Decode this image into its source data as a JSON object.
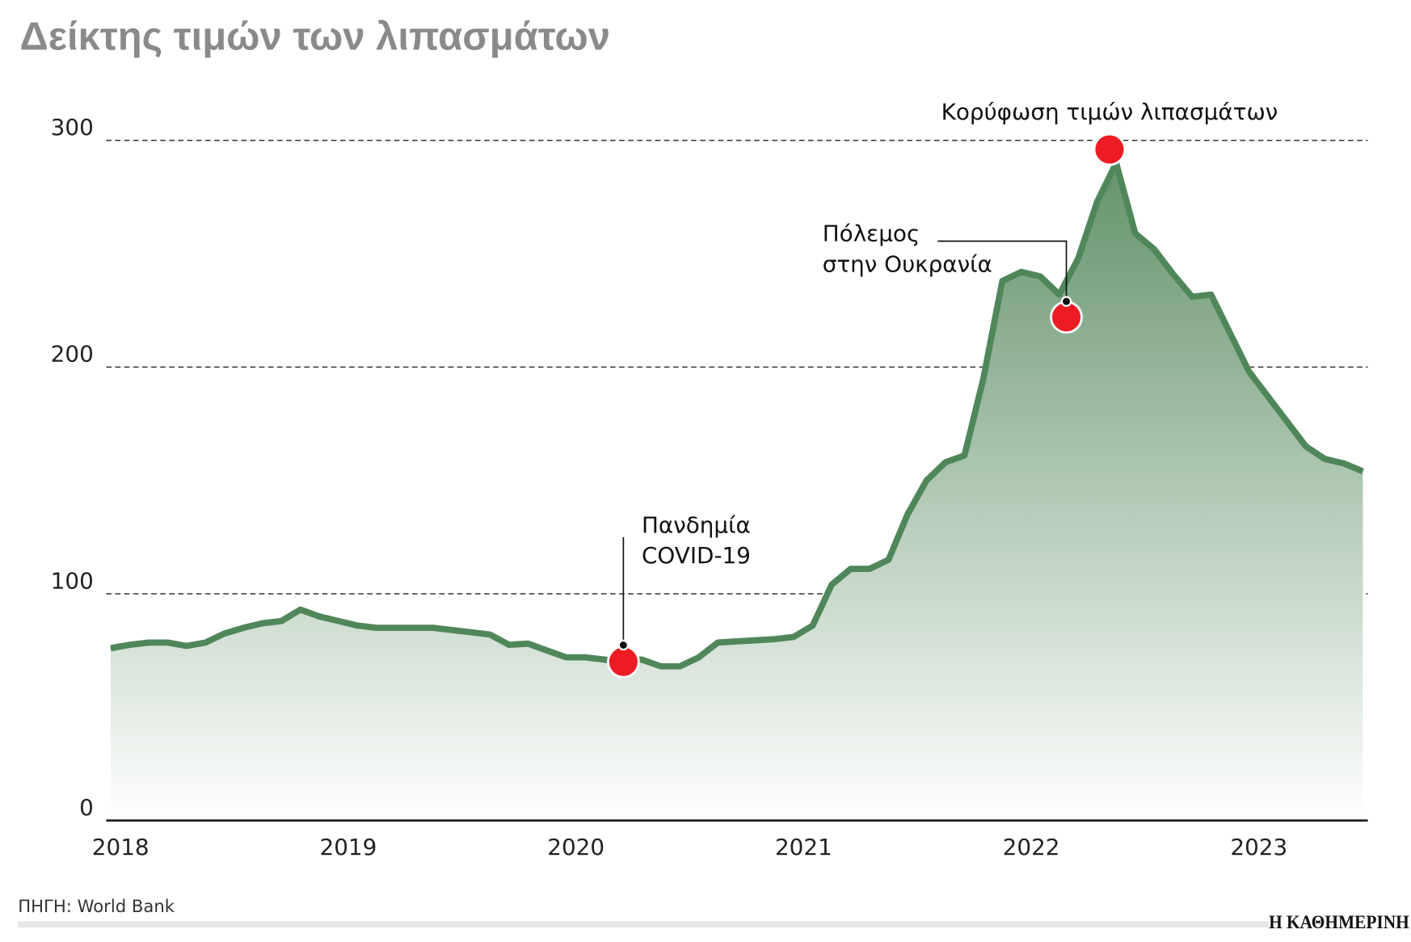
{
  "title": "Δείκτης τιμών των λιπασμάτων",
  "source": "ΠΗΓΗ: World Bank",
  "logo": "Η ΚΑΘΗΜΕΡΙΝΗ",
  "colors": {
    "line": "#50875a",
    "fill_top": "#5f8f66",
    "fill_bottom": "#ffffff",
    "marker": "#ed1c24",
    "title": "#8a8a8a"
  },
  "chart_data": {
    "type": "area",
    "title": "Δείκτης τιμών των λιπασμάτων",
    "xlabel": "",
    "ylabel": "",
    "x_start": "2018-01",
    "x_frequency": "monthly",
    "xlim": [
      "2018-01",
      "2023-07"
    ],
    "ylim": [
      0,
      300
    ],
    "grid": true,
    "x_ticks": [
      "2018",
      "2019",
      "2020",
      "2021",
      "2022",
      "2023"
    ],
    "y_ticks": [
      "0",
      "100",
      "200",
      "300"
    ],
    "values": [
      76,
      77.5,
      78.5,
      78.5,
      77,
      78.5,
      82.5,
      85,
      87,
      88,
      93,
      90,
      88,
      86,
      85,
      85,
      85,
      85,
      84,
      83,
      82,
      77.5,
      78,
      75,
      72,
      72,
      71,
      70,
      71,
      68,
      68,
      72,
      78.5,
      79,
      79.5,
      80,
      81,
      86,
      104,
      111,
      111,
      115,
      135,
      150,
      158,
      161,
      195,
      238,
      242,
      240,
      232,
      248,
      273,
      290,
      259,
      252,
      241,
      231,
      232,
      215,
      198,
      187,
      176,
      165,
      159.5,
      157.5,
      154
    ],
    "annotations": [
      {
        "label_lines": [
          "Πανδημία",
          "COVID-19"
        ],
        "date": "2020-04",
        "value": 70
      },
      {
        "label_lines": [
          "Πόλεμος",
          "στην Ουκρανία"
        ],
        "date": "2022-03",
        "value": 222
      },
      {
        "label_lines": [
          "Κορύφωση τιμών λιπασμάτων"
        ],
        "date": "2022-05",
        "value": 296
      }
    ]
  }
}
